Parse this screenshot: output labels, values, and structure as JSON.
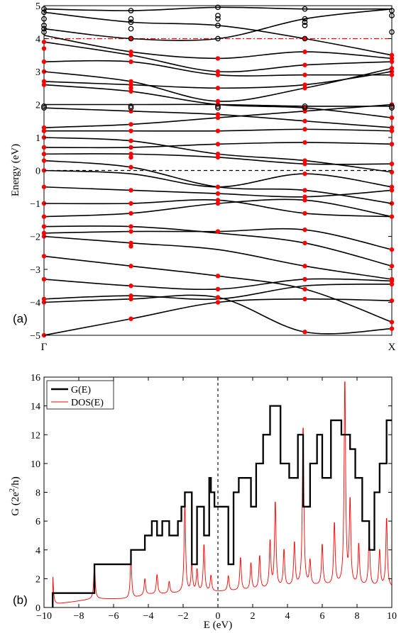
{
  "chart_data": [
    {
      "type": "line",
      "panel_label": "(a)",
      "ylabel": "Energy (eV)",
      "xlabel": "",
      "ylim": [
        -5,
        5
      ],
      "yticks": [
        "5",
        "4",
        "3",
        "2",
        "1",
        "0",
        "−1",
        "−2",
        "−3",
        "−4",
        "−5"
      ],
      "ytick_values": [
        5,
        4,
        3,
        2,
        1,
        0,
        -1,
        -2,
        -3,
        -4,
        -5
      ],
      "xtick_labels": [
        "Γ",
        "X"
      ],
      "fermi_level": 0,
      "reference_line": 4,
      "grid": false,
      "band_x": [
        0,
        0.25,
        0.5,
        0.75,
        1.0
      ],
      "bands": [
        [
          -5.0,
          -4.5,
          -4.0,
          -3.9,
          -3.95
        ],
        [
          -4.0,
          -3.9,
          -3.85,
          -4.9,
          -4.8
        ],
        [
          -3.9,
          -3.8,
          -3.9,
          -3.5,
          -3.45
        ],
        [
          -3.3,
          -3.5,
          -3.6,
          -3.3,
          -3.35
        ],
        [
          -2.6,
          -2.9,
          -3.2,
          -3.6,
          -4.6
        ],
        [
          -2.0,
          -2.2,
          -2.4,
          -2.9,
          -3.3
        ],
        [
          -1.9,
          -1.85,
          -1.85,
          -1.8,
          -2.4
        ],
        [
          -1.7,
          -1.7,
          -1.9,
          -2.2,
          -2.9
        ],
        [
          -1.4,
          -1.3,
          -1.0,
          -0.9,
          -1.4
        ],
        [
          -1.0,
          -1.0,
          -0.9,
          -1.3,
          -1.4
        ],
        [
          -0.5,
          -0.6,
          -0.7,
          -0.8,
          -0.6
        ],
        [
          0.0,
          -0.1,
          -0.5,
          -0.1,
          -0.5
        ],
        [
          0.3,
          0.1,
          -0.5,
          -0.6,
          -1.0
        ],
        [
          0.5,
          0.5,
          0.4,
          0.2,
          0.2
        ],
        [
          0.7,
          0.7,
          0.8,
          0.85,
          0.8
        ],
        [
          1.0,
          0.9,
          0.5,
          0.3,
          -0.05
        ],
        [
          1.2,
          1.2,
          1.2,
          1.25,
          1.2
        ],
        [
          1.3,
          1.4,
          1.6,
          1.8,
          2.0
        ],
        [
          1.9,
          1.8,
          1.7,
          1.5,
          1.3
        ],
        [
          2.0,
          2.0,
          2.0,
          1.95,
          1.95
        ],
        [
          2.6,
          2.4,
          2.0,
          1.9,
          1.6
        ],
        [
          2.7,
          2.6,
          2.5,
          2.6,
          3.0
        ],
        [
          3.0,
          2.7,
          2.1,
          2.5,
          3.1
        ],
        [
          3.3,
          3.3,
          2.9,
          2.9,
          2.9
        ],
        [
          3.9,
          3.5,
          3.0,
          3.2,
          3.3
        ],
        [
          4.1,
          3.6,
          3.4,
          3.6,
          3.4
        ],
        [
          4.3,
          4.0,
          4.0,
          4.6,
          4.9
        ],
        [
          4.8,
          4.5,
          4.4,
          4.0,
          3.5
        ],
        [
          4.9,
          4.85,
          4.95,
          4.9,
          4.9
        ]
      ],
      "scatter_series": [
        {
          "marker": "filled",
          "color": "#ff0000",
          "points": [
            [
              0,
              -5.0
            ],
            [
              0,
              -4.0
            ],
            [
              0,
              -3.9
            ],
            [
              0,
              -3.3
            ],
            [
              0,
              -2.6
            ],
            [
              0,
              -2.0
            ],
            [
              0,
              -1.9
            ],
            [
              0,
              -1.7
            ],
            [
              0,
              -1.4
            ],
            [
              0,
              -1.0
            ],
            [
              0,
              -0.5
            ],
            [
              0,
              0.0
            ],
            [
              0,
              0.3
            ],
            [
              0,
              0.5
            ],
            [
              0,
              0.7
            ],
            [
              0,
              1.0
            ],
            [
              0,
              1.2
            ],
            [
              0,
              1.3
            ],
            [
              0,
              2.6
            ],
            [
              0,
              2.7
            ],
            [
              0,
              3.0
            ],
            [
              0,
              3.3
            ],
            [
              0,
              3.7
            ],
            [
              0,
              3.9
            ],
            [
              0.25,
              -4.5
            ],
            [
              0.25,
              -3.9
            ],
            [
              0.25,
              -3.8
            ],
            [
              0.25,
              -3.5
            ],
            [
              0.25,
              -2.9
            ],
            [
              0.25,
              -2.3
            ],
            [
              0.25,
              -2.2
            ],
            [
              0.25,
              -1.85
            ],
            [
              0.25,
              -1.7
            ],
            [
              0.25,
              -1.3
            ],
            [
              0.25,
              -1.0
            ],
            [
              0.25,
              -0.6
            ],
            [
              0.25,
              0.1
            ],
            [
              0.25,
              0.4
            ],
            [
              0.25,
              0.5
            ],
            [
              0.25,
              0.7
            ],
            [
              0.25,
              0.9
            ],
            [
              0.25,
              1.2
            ],
            [
              0.25,
              1.4
            ],
            [
              0.25,
              1.8
            ],
            [
              0.25,
              2.4
            ],
            [
              0.25,
              2.5
            ],
            [
              0.25,
              2.6
            ],
            [
              0.25,
              2.7
            ],
            [
              0.25,
              3.3
            ],
            [
              0.25,
              3.5
            ],
            [
              0.25,
              3.6
            ],
            [
              0.25,
              4.0
            ],
            [
              0.5,
              -4.0
            ],
            [
              0.5,
              -3.85
            ],
            [
              0.5,
              -3.6
            ],
            [
              0.5,
              -3.2
            ],
            [
              0.5,
              -1.85
            ],
            [
              0.5,
              -1.0
            ],
            [
              0.5,
              -0.9
            ],
            [
              0.5,
              -0.7
            ],
            [
              0.5,
              -0.5
            ],
            [
              0.5,
              0.4
            ],
            [
              0.5,
              0.5
            ],
            [
              0.5,
              0.8
            ],
            [
              0.5,
              1.2
            ],
            [
              0.5,
              1.6
            ],
            [
              0.5,
              1.7
            ],
            [
              0.5,
              2.0
            ],
            [
              0.5,
              2.1
            ],
            [
              0.5,
              2.5
            ],
            [
              0.5,
              2.9
            ],
            [
              0.5,
              3.0
            ],
            [
              0.5,
              3.4
            ],
            [
              0.75,
              -4.9
            ],
            [
              0.75,
              -3.9
            ],
            [
              0.75,
              -3.6
            ],
            [
              0.75,
              -3.3
            ],
            [
              0.75,
              -2.9
            ],
            [
              0.75,
              -2.2
            ],
            [
              0.75,
              -1.8
            ],
            [
              0.75,
              -1.3
            ],
            [
              0.75,
              -0.9
            ],
            [
              0.75,
              -0.8
            ],
            [
              0.75,
              -0.6
            ],
            [
              0.75,
              -0.1
            ],
            [
              0.75,
              0.2
            ],
            [
              0.75,
              0.3
            ],
            [
              0.75,
              0.85
            ],
            [
              0.75,
              1.25
            ],
            [
              0.75,
              1.5
            ],
            [
              0.75,
              1.8
            ],
            [
              0.75,
              1.9
            ],
            [
              0.75,
              2.5
            ],
            [
              0.75,
              2.6
            ],
            [
              0.75,
              2.9
            ],
            [
              0.75,
              3.2
            ],
            [
              0.75,
              3.6
            ],
            [
              0.75,
              4.0
            ],
            [
              1.0,
              -4.8
            ],
            [
              1.0,
              -4.6
            ],
            [
              1.0,
              -3.95
            ],
            [
              1.0,
              -3.45
            ],
            [
              1.0,
              -3.35
            ],
            [
              1.0,
              -3.3
            ],
            [
              1.0,
              -2.9
            ],
            [
              1.0,
              -2.4
            ],
            [
              1.0,
              -1.4
            ],
            [
              1.0,
              -1.0
            ],
            [
              1.0,
              -0.6
            ],
            [
              1.0,
              -0.5
            ],
            [
              1.0,
              -0.05
            ],
            [
              1.0,
              0.2
            ],
            [
              1.0,
              0.8
            ],
            [
              1.0,
              1.2
            ],
            [
              1.0,
              1.3
            ],
            [
              1.0,
              1.6
            ],
            [
              1.0,
              2.0
            ],
            [
              1.0,
              2.9
            ],
            [
              1.0,
              3.0
            ],
            [
              1.0,
              3.1
            ],
            [
              1.0,
              3.3
            ],
            [
              1.0,
              3.4
            ],
            [
              1.0,
              3.5
            ]
          ]
        },
        {
          "marker": "open",
          "color": "#000000",
          "points": [
            [
              0,
              4.9
            ],
            [
              0,
              4.8
            ],
            [
              0,
              4.6
            ],
            [
              0,
              4.4
            ],
            [
              0,
              4.3
            ],
            [
              0,
              4.2
            ],
            [
              0,
              1.95
            ],
            [
              0,
              1.9
            ],
            [
              0.25,
              4.85
            ],
            [
              0.25,
              4.6
            ],
            [
              0.25,
              4.5
            ],
            [
              0.25,
              4.3
            ],
            [
              0.25,
              4.0
            ],
            [
              0.25,
              1.95
            ],
            [
              0.25,
              1.9
            ],
            [
              0.5,
              4.95
            ],
            [
              0.5,
              4.7
            ],
            [
              0.5,
              4.6
            ],
            [
              0.5,
              4.4
            ],
            [
              0.5,
              4.0
            ],
            [
              0.5,
              1.95
            ],
            [
              0.5,
              1.9
            ],
            [
              0.75,
              4.9
            ],
            [
              0.75,
              4.6
            ],
            [
              0.75,
              4.5
            ],
            [
              0.75,
              4.4
            ],
            [
              0.75,
              4.0
            ],
            [
              0.75,
              1.95
            ],
            [
              0.75,
              1.9
            ],
            [
              1.0,
              4.85
            ],
            [
              1.0,
              4.7
            ],
            [
              1.0,
              4.2
            ],
            [
              1.0,
              1.95
            ],
            [
              1.0,
              1.9
            ]
          ]
        }
      ]
    },
    {
      "type": "line",
      "panel_label": "(b)",
      "xlabel": "E (eV)",
      "ylabel_main": "G (2e",
      "ylabel_sup": "2",
      "ylabel_end": "/h)",
      "xlim": [
        -10,
        10
      ],
      "ylim": [
        0,
        16
      ],
      "xticks": [
        "−10",
        "−8",
        "−6",
        "−4",
        "−2",
        "0",
        "2",
        "4",
        "6",
        "8",
        "10"
      ],
      "xtick_values": [
        -10,
        -8,
        -6,
        -4,
        -2,
        0,
        2,
        4,
        6,
        8,
        10
      ],
      "yticks": [
        "0",
        "2",
        "4",
        "6",
        "8",
        "10",
        "12",
        "14",
        "16"
      ],
      "ytick_values": [
        0,
        2,
        4,
        6,
        8,
        10,
        12,
        14,
        16
      ],
      "grid": false,
      "legend_position": "top-left",
      "vline": 0,
      "series": [
        {
          "name": "G(E)",
          "color": "#000000",
          "step": true,
          "x": [
            -9.5,
            -7.1,
            -5.0,
            -4.2,
            -3.8,
            -3.5,
            -3.2,
            -2.8,
            -2.3,
            -2.1,
            -1.9,
            -1.5,
            -1.2,
            -0.8,
            -0.5,
            -0.4,
            -0.2,
            0.2,
            0.6,
            0.9,
            1.2,
            1.9,
            2.2,
            2.6,
            3.0,
            3.6,
            4.1,
            4.6,
            4.9,
            5.3,
            5.7,
            6.0,
            6.5,
            7.1,
            7.6,
            7.9,
            8.3,
            8.7,
            9.0,
            9.3,
            9.7,
            10.0
          ],
          "values": [
            1,
            3,
            4,
            5,
            6,
            5,
            6,
            5,
            6,
            7,
            8,
            3,
            7,
            5,
            9,
            8,
            7,
            7,
            3,
            8,
            9,
            7,
            10,
            12,
            14,
            10,
            9,
            12,
            7,
            10,
            12,
            9,
            13,
            12,
            11,
            9,
            6,
            4,
            8,
            10,
            13,
            13
          ]
        },
        {
          "name": "DOS(E)",
          "color": "#ff0000",
          "baseline": [
            [
              -9.5,
              0.2
            ],
            [
              -7.1,
              0.6
            ],
            [
              -5.0,
              0.6
            ],
            [
              -4.0,
              0.9
            ],
            [
              -2.0,
              1.0
            ],
            [
              0.0,
              1.1
            ],
            [
              2.0,
              1.2
            ],
            [
              4.0,
              1.4
            ],
            [
              6.0,
              1.5
            ],
            [
              8.0,
              1.5
            ],
            [
              10.0,
              1.4
            ]
          ],
          "peaks": [
            [
              -9.5,
              2.2
            ],
            [
              -7.1,
              3.0
            ],
            [
              -5.0,
              3.5
            ],
            [
              -4.2,
              2.0
            ],
            [
              -3.5,
              2.3
            ],
            [
              -2.8,
              1.8
            ],
            [
              -1.9,
              7.3
            ],
            [
              -1.5,
              3.0
            ],
            [
              -1.2,
              2.6
            ],
            [
              -0.8,
              4.4
            ],
            [
              -0.4,
              2.2
            ],
            [
              0.6,
              2.2
            ],
            [
              1.3,
              3.5
            ],
            [
              1.9,
              3.1
            ],
            [
              2.4,
              3.6
            ],
            [
              3.0,
              4.6
            ],
            [
              3.3,
              7.4
            ],
            [
              3.8,
              4.0
            ],
            [
              4.4,
              4.5
            ],
            [
              4.9,
              12.8
            ],
            [
              5.3,
              3.2
            ],
            [
              6.0,
              4.4
            ],
            [
              6.7,
              5.9
            ],
            [
              7.3,
              16.0
            ],
            [
              7.6,
              7.4
            ],
            [
              8.1,
              4.4
            ],
            [
              8.7,
              5.2
            ],
            [
              9.3,
              4.0
            ],
            [
              9.7,
              6.3
            ]
          ]
        }
      ]
    }
  ]
}
